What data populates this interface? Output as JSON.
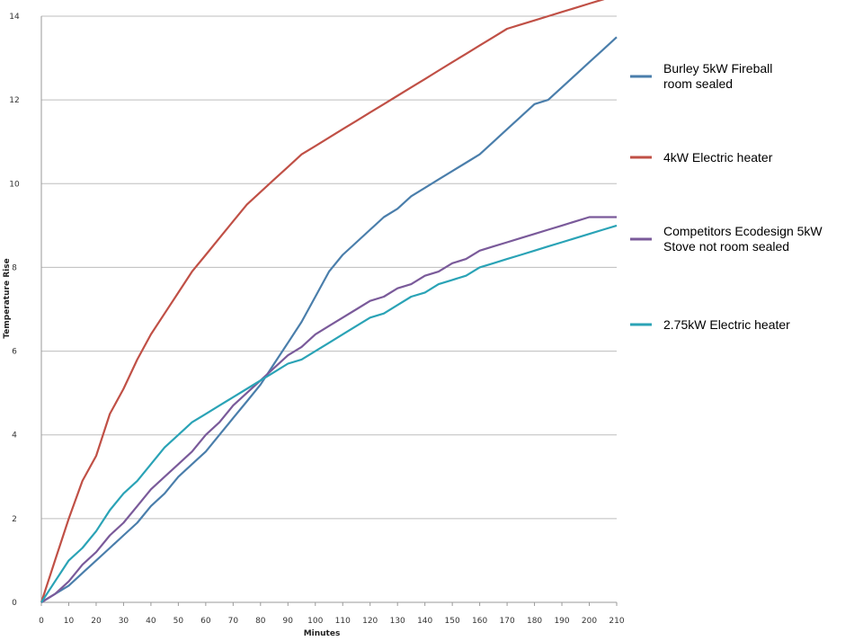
{
  "chart_data": {
    "type": "line",
    "title": "",
    "xlabel": "Minutes",
    "ylabel": "Temperature Rise",
    "xlim": [
      0,
      210
    ],
    "ylim": [
      0,
      14
    ],
    "x_ticks": [
      0,
      10,
      20,
      30,
      40,
      50,
      60,
      70,
      80,
      90,
      100,
      110,
      120,
      130,
      140,
      150,
      160,
      170,
      180,
      190,
      200,
      210
    ],
    "x_tick_labels": [
      "0",
      "10",
      "20",
      "30",
      "40",
      "50",
      "60",
      "70",
      "80",
      "90",
      "100",
      "110",
      "120",
      "130",
      "140",
      "150",
      "160",
      "170",
      "180",
      "190",
      "200",
      "210"
    ],
    "y_ticks": [
      0,
      2,
      4,
      6,
      8,
      10,
      12,
      14
    ],
    "y_tick_labels": [
      "0",
      "2",
      "4",
      "6",
      "8",
      "10",
      "12",
      "14"
    ],
    "grid": "horizontal",
    "legend_position": "right",
    "x": [
      0,
      5,
      10,
      15,
      20,
      25,
      30,
      35,
      40,
      45,
      50,
      55,
      60,
      65,
      70,
      75,
      80,
      85,
      90,
      95,
      100,
      105,
      110,
      115,
      120,
      125,
      130,
      135,
      140,
      145,
      150,
      155,
      160,
      165,
      170,
      175,
      180,
      185,
      190,
      195,
      200,
      205,
      210
    ],
    "series": [
      {
        "name": "Burley 5kW Fireball room sealed",
        "color": "#4a7eab",
        "values": [
          0,
          0.2,
          0.4,
          0.7,
          1.0,
          1.3,
          1.6,
          1.9,
          2.3,
          2.6,
          3.0,
          3.3,
          3.6,
          4.0,
          4.4,
          4.8,
          5.2,
          5.7,
          6.2,
          6.7,
          7.3,
          7.9,
          8.3,
          8.6,
          8.9,
          9.2,
          9.4,
          9.7,
          9.9,
          10.1,
          10.3,
          10.5,
          10.7,
          11.0,
          11.3,
          11.6,
          11.9,
          12.0,
          12.3,
          12.6,
          12.9,
          13.2,
          13.5
        ]
      },
      {
        "name": "4kW Electric heater",
        "color": "#c05046",
        "values": [
          0,
          1.0,
          2.0,
          2.9,
          3.5,
          4.5,
          5.1,
          5.8,
          6.4,
          6.9,
          7.4,
          7.9,
          8.3,
          8.7,
          9.1,
          9.5,
          9.8,
          10.1,
          10.4,
          10.7,
          10.9,
          11.1,
          11.3,
          11.5,
          11.7,
          11.9,
          12.1,
          12.3,
          12.5,
          12.7,
          12.9,
          13.1,
          13.3,
          13.5,
          13.7,
          13.8,
          13.9,
          14.0,
          14.1,
          14.2,
          14.3,
          14.4,
          14.5
        ]
      },
      {
        "name": "Competitors Ecodesign 5kW Stove not room sealed",
        "color": "#7a5a9a",
        "values": [
          0,
          0.2,
          0.5,
          0.9,
          1.2,
          1.6,
          1.9,
          2.3,
          2.7,
          3.0,
          3.3,
          3.6,
          4.0,
          4.3,
          4.7,
          5.0,
          5.3,
          5.6,
          5.9,
          6.1,
          6.4,
          6.6,
          6.8,
          7.0,
          7.2,
          7.3,
          7.5,
          7.6,
          7.8,
          7.9,
          8.1,
          8.2,
          8.4,
          8.5,
          8.6,
          8.7,
          8.8,
          8.9,
          9.0,
          9.1,
          9.2,
          9.2,
          9.2
        ]
      },
      {
        "name": "2.75kW Electric heater",
        "color": "#2aa3b6",
        "values": [
          0,
          0.5,
          1.0,
          1.3,
          1.7,
          2.2,
          2.6,
          2.9,
          3.3,
          3.7,
          4.0,
          4.3,
          4.5,
          4.7,
          4.9,
          5.1,
          5.3,
          5.5,
          5.7,
          5.8,
          6.0,
          6.2,
          6.4,
          6.6,
          6.8,
          6.9,
          7.1,
          7.3,
          7.4,
          7.6,
          7.7,
          7.8,
          8.0,
          8.1,
          8.2,
          8.3,
          8.4,
          8.5,
          8.6,
          8.7,
          8.8,
          8.9,
          9.0
        ]
      }
    ]
  },
  "legend": [
    {
      "line1": "Burley 5kW Fireball",
      "line2": "room sealed"
    },
    {
      "line1": "4kW Electric heater",
      "line2": ""
    },
    {
      "line1": "Competitors Ecodesign 5kW",
      "line2": "Stove not room sealed"
    },
    {
      "line1": "2.75kW Electric heater",
      "line2": ""
    }
  ]
}
